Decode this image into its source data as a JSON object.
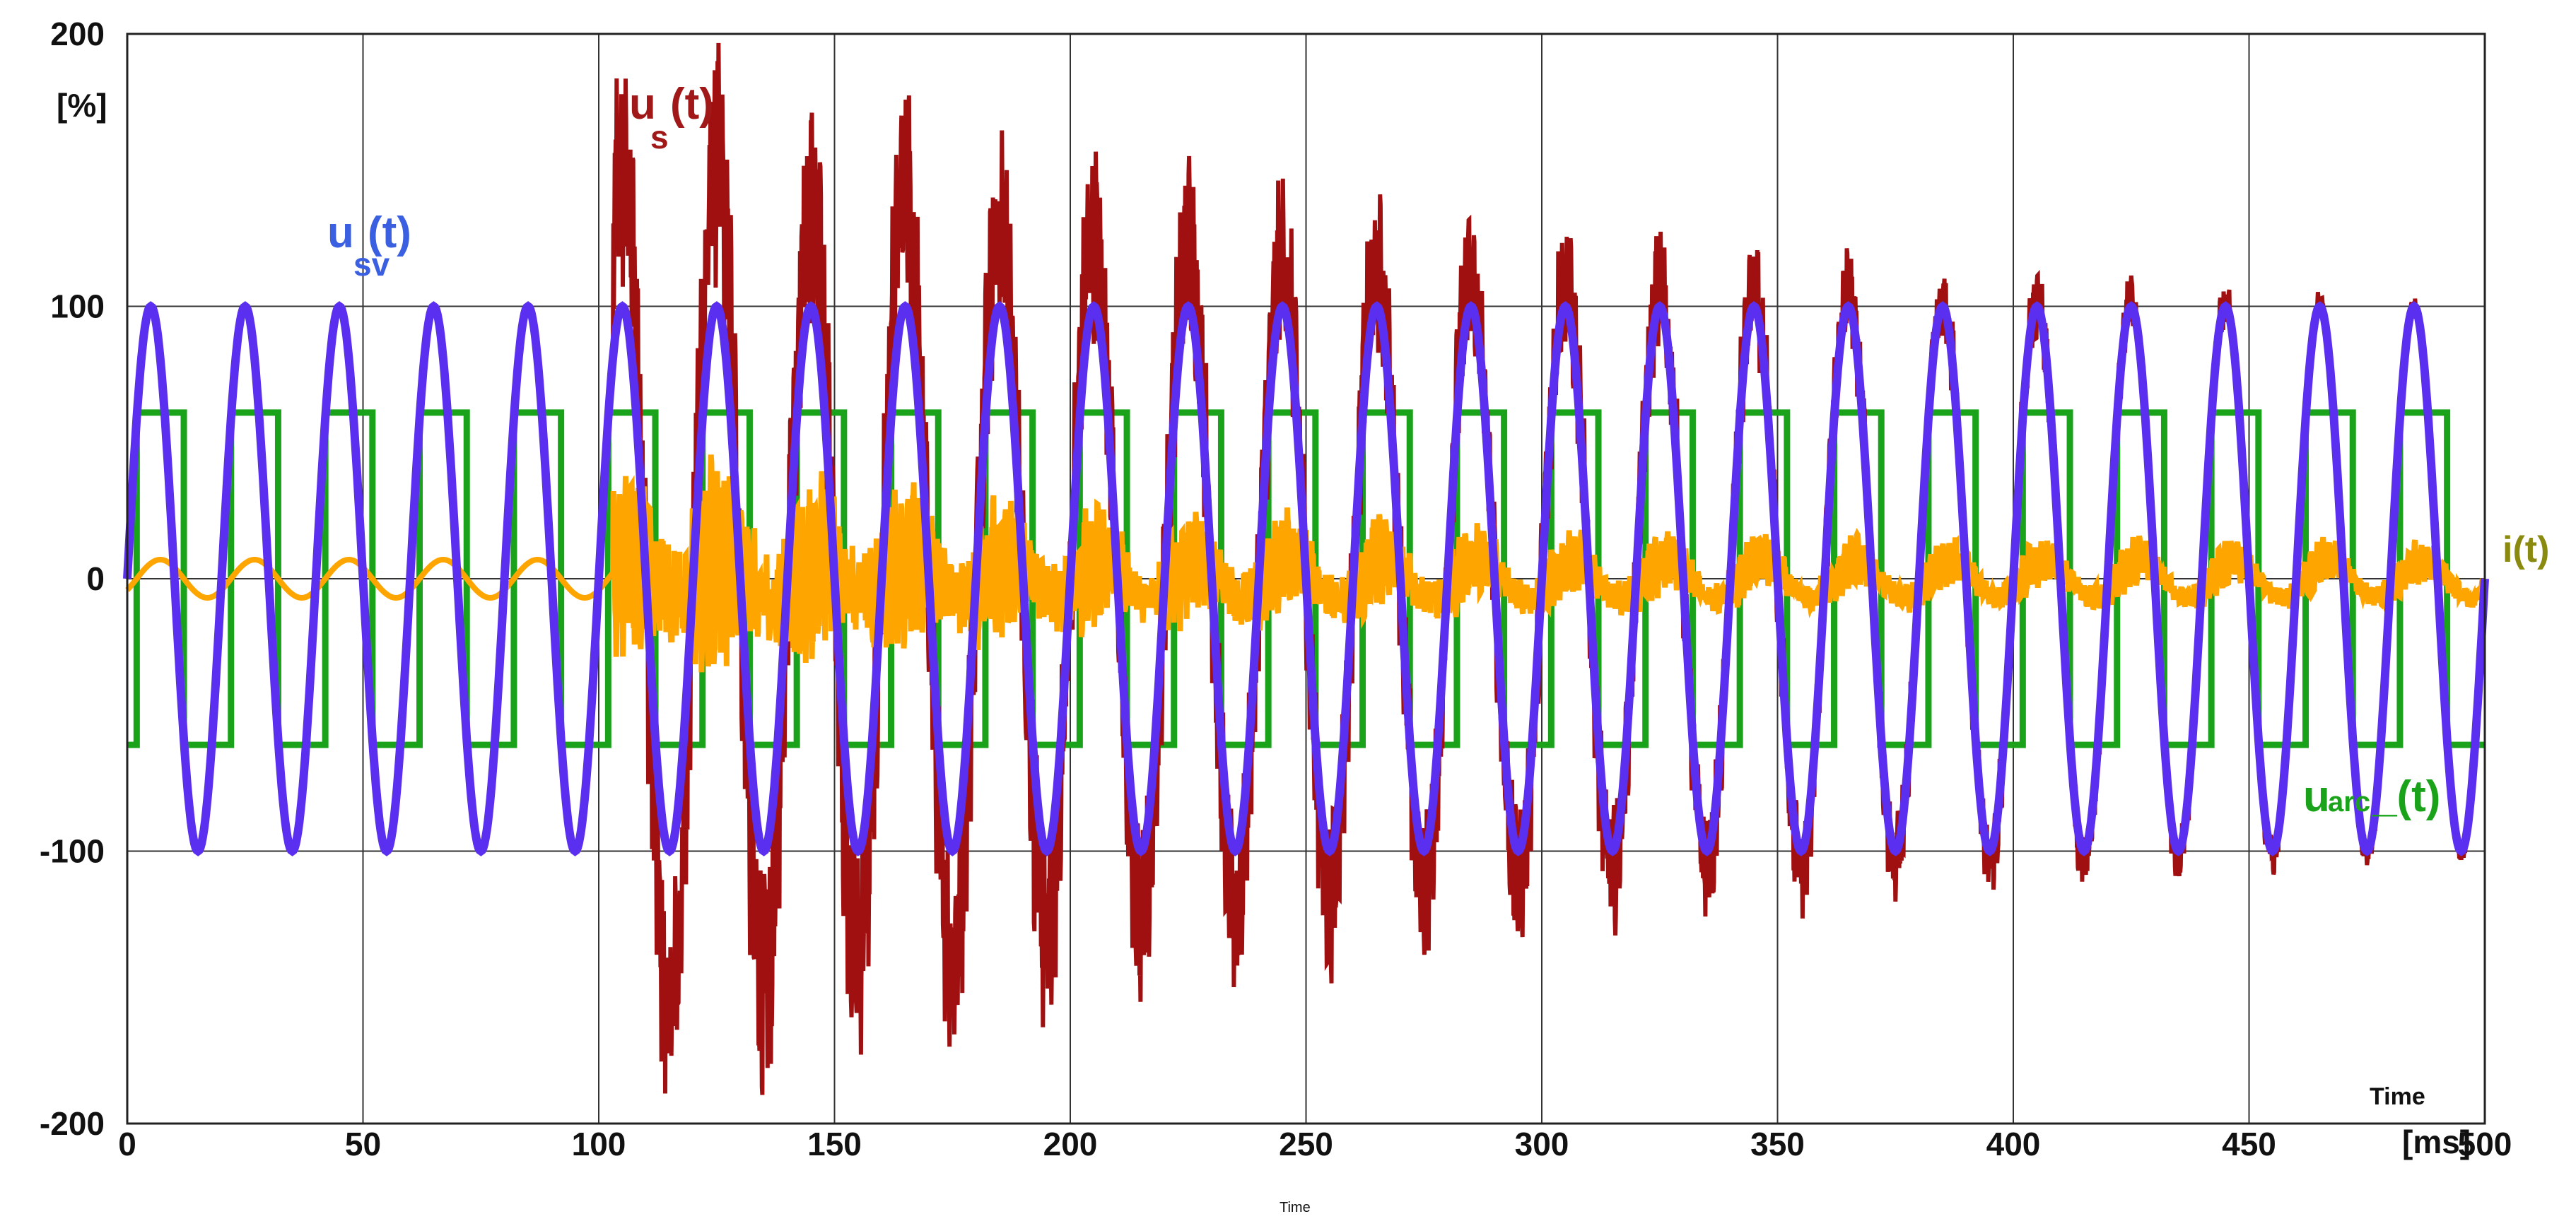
{
  "chart_data": {
    "type": "line",
    "ylabel": "[%]",
    "x_unit_label": "[ms]",
    "time_label": "Time",
    "time_small_label": "Time",
    "xlim": [
      0,
      500
    ],
    "ylim": [
      -200,
      200
    ],
    "x_ticks": [
      0,
      50,
      100,
      150,
      200,
      250,
      300,
      350,
      400,
      450,
      500
    ],
    "y_ticks": [
      200,
      100,
      0,
      -100,
      -200
    ],
    "grid": true,
    "series": [
      {
        "name": "u_arc(t)",
        "kind": "square",
        "color": "#1aa31a",
        "amplitude": 61,
        "period_ms": 20,
        "duty_high_start_ms": 2,
        "duty_high_end_ms": 12
      },
      {
        "name": "u_s(t)",
        "kind": "sine_with_transient",
        "color": "#a01010",
        "amplitude": 100,
        "period_ms": 20,
        "transient_start_ms": 103,
        "peak_values": [
          152,
          153,
          134,
          142,
          130,
          126,
          122,
          116,
          113,
          110,
          108,
          106,
          104,
          103,
          102,
          101,
          101,
          100,
          100,
          100
        ],
        "trough_values": [
          -160,
          -150,
          -138,
          -140,
          -132,
          -125,
          -120,
          -116,
          -113,
          -110,
          -108,
          -106,
          -105,
          -104,
          -103,
          -103,
          -102,
          -102,
          -101,
          -101
        ]
      },
      {
        "name": "u_sv(t)",
        "kind": "sine",
        "color": "#5a2ff0",
        "amplitude": 100,
        "period_ms": 20
      },
      {
        "name": "i(t)",
        "kind": "current_with_noise",
        "color": "#ffa500",
        "base_amplitude": 7,
        "period_ms": 20,
        "noise_start_ms": 103,
        "noise_envelope": [
          [
            103,
            28
          ],
          [
            130,
            30
          ],
          [
            160,
            24
          ],
          [
            200,
            18
          ],
          [
            250,
            14
          ],
          [
            300,
            10
          ],
          [
            350,
            8
          ],
          [
            400,
            7
          ],
          [
            500,
            6
          ]
        ]
      }
    ],
    "labels": {
      "usv": {
        "main": "u",
        "sub": "sv",
        "tail": "(t)",
        "color": "#3a5fe0"
      },
      "us": {
        "main": "u",
        "sub": "s",
        "tail": "(t)",
        "color": "#a01818"
      },
      "it": {
        "text": "i(t)",
        "color": "#8a8a10"
      },
      "uarc": {
        "main": "u",
        "sub": "arc",
        "tail": "_(t)",
        "color": "#1aa31a"
      }
    }
  }
}
